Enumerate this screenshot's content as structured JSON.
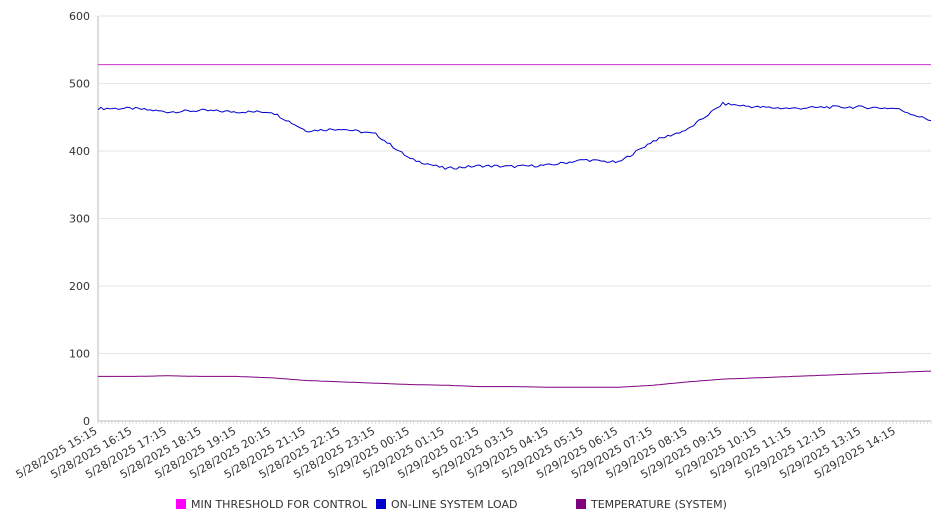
{
  "chart_data": {
    "type": "line",
    "title": "",
    "xlabel": "",
    "ylabel": "",
    "ylim": [
      0,
      600
    ],
    "yticks": [
      0,
      100,
      200,
      300,
      400,
      500,
      600
    ],
    "grid": "horizontal",
    "legend_position": "bottom",
    "x_start": "5/28/2025 15:15",
    "x_tick_labels": [
      "5/28/2025 15:15",
      "5/28/2025 16:15",
      "5/28/2025 17:15",
      "5/28/2025 18:15",
      "5/28/2025 19:15",
      "5/28/2025 20:15",
      "5/28/2025 21:15",
      "5/28/2025 22:15",
      "5/28/2025 23:15",
      "5/29/2025 00:15",
      "5/29/2025 01:15",
      "5/29/2025 02:15",
      "5/29/2025 03:15",
      "5/29/2025 04:15",
      "5/29/2025 05:15",
      "5/29/2025 06:15",
      "5/29/2025 07:15",
      "5/29/2025 08:15",
      "5/29/2025 09:15",
      "5/29/2025 10:15",
      "5/29/2025 11:15",
      "5/29/2025 12:15",
      "5/29/2025 13:15",
      "5/29/2025 14:15"
    ],
    "x": [
      "5/28/2025 15:15",
      "5/28/2025 16:15",
      "5/28/2025 17:15",
      "5/28/2025 18:15",
      "5/28/2025 19:15",
      "5/28/2025 20:15",
      "5/28/2025 21:15",
      "5/28/2025 22:15",
      "5/28/2025 23:15",
      "5/29/2025 00:15",
      "5/29/2025 01:15",
      "5/29/2025 02:15",
      "5/29/2025 03:15",
      "5/29/2025 04:15",
      "5/29/2025 05:15",
      "5/29/2025 06:15",
      "5/29/2025 07:15",
      "5/29/2025 08:15",
      "5/29/2025 09:15",
      "5/29/2025 10:15",
      "5/29/2025 11:15",
      "5/29/2025 12:15",
      "5/29/2025 13:15",
      "5/29/2025 14:15",
      "5/29/2025 15:15"
    ],
    "series": [
      {
        "name": "MIN THRESHOLD FOR CONTROL",
        "color": "#cc33cc",
        "swatch": "#ff00ff",
        "values": [
          528,
          528,
          528,
          528,
          528,
          528,
          528,
          528,
          528,
          528,
          528,
          528,
          528,
          528,
          528,
          528,
          528,
          528,
          528,
          528,
          528,
          528,
          528,
          528,
          528
        ]
      },
      {
        "name": "ON-LINE SYSTEM LOAD",
        "color": "#0000cc",
        "swatch": "#0000cc",
        "values": [
          463,
          463,
          458,
          460,
          458,
          458,
          430,
          433,
          425,
          388,
          374,
          378,
          377,
          379,
          387,
          383,
          415,
          432,
          470,
          465,
          463,
          465,
          465,
          463,
          445
        ]
      },
      {
        "name": "TEMPERATURE (SYSTEM)",
        "color": "#800080",
        "swatch": "#800080",
        "values": [
          66,
          66,
          67,
          66,
          66,
          64,
          60,
          58,
          56,
          54,
          53,
          51,
          51,
          50,
          50,
          50,
          53,
          58,
          62,
          64,
          66,
          68,
          70,
          72,
          74
        ]
      }
    ]
  }
}
